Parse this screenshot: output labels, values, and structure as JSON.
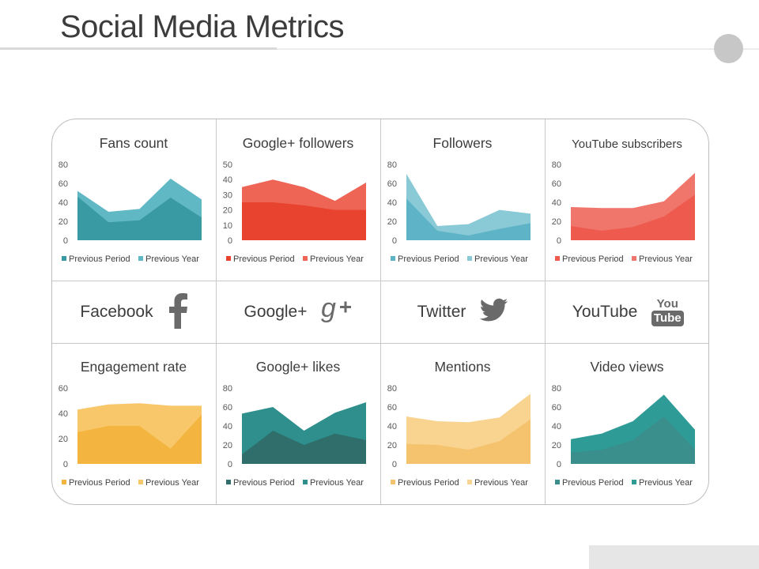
{
  "slide": {
    "title": "Social Media Metrics"
  },
  "networks": [
    {
      "label": "Facebook",
      "icon": "facebook-icon"
    },
    {
      "label": "Google+",
      "icon": "google-plus-icon"
    },
    {
      "label": "Twitter",
      "icon": "twitter-icon"
    },
    {
      "label": "YouTube",
      "icon": "youtube-icon",
      "icon_text_top": "You",
      "icon_text_bottom": "Tube"
    }
  ],
  "chart_data": [
    {
      "type": "area",
      "title": "Fans count",
      "ylim": [
        0,
        80
      ],
      "yticks": [
        0,
        20,
        40,
        60,
        80
      ],
      "x": [
        1,
        2,
        3,
        4,
        5
      ],
      "series": [
        {
          "name": "Previous Period",
          "values": [
            46,
            19,
            21,
            45,
            24
          ],
          "color": "#3a9aa4"
        },
        {
          "name": "Previous Year",
          "values": [
            52,
            30,
            33,
            65,
            43
          ],
          "color": "#5fb8c4"
        }
      ]
    },
    {
      "type": "area",
      "title": "Google+ followers",
      "ylim": [
        0,
        50
      ],
      "yticks": [
        0,
        10,
        20,
        30,
        40,
        50
      ],
      "x": [
        1,
        2,
        3,
        4,
        5
      ],
      "series": [
        {
          "name": "Previous Period",
          "values": [
            25,
            25,
            23,
            20,
            20
          ],
          "color": "#e8432f"
        },
        {
          "name": "Previous Year",
          "values": [
            35,
            40,
            35,
            26,
            38
          ],
          "color": "#ee6555"
        }
      ]
    },
    {
      "type": "area",
      "title": "Followers",
      "ylim": [
        0,
        80
      ],
      "yticks": [
        0,
        20,
        40,
        60,
        80
      ],
      "x": [
        1,
        2,
        3,
        4,
        5
      ],
      "series": [
        {
          "name": "Previous Period",
          "values": [
            44,
            10,
            5,
            12,
            18
          ],
          "color": "#5fb3c6"
        },
        {
          "name": "Previous Year",
          "values": [
            70,
            15,
            17,
            32,
            28
          ],
          "color": "#89cad6"
        }
      ]
    },
    {
      "type": "area",
      "title": "YouTube subscribers",
      "ylim": [
        0,
        80
      ],
      "yticks": [
        0,
        20,
        40,
        60,
        80
      ],
      "x": [
        1,
        2,
        3,
        4,
        5
      ],
      "series": [
        {
          "name": "Previous Period",
          "values": [
            15,
            10,
            14,
            25,
            48
          ],
          "color": "#ee5a4e"
        },
        {
          "name": "Previous Year",
          "values": [
            35,
            34,
            34,
            41,
            71
          ],
          "color": "#f0756a"
        }
      ]
    },
    {
      "type": "area",
      "title": "Engagement rate",
      "ylim": [
        0,
        60
      ],
      "yticks": [
        0,
        20,
        40,
        60
      ],
      "x": [
        1,
        2,
        3,
        4,
        5
      ],
      "series": [
        {
          "name": "Previous Period",
          "values": [
            25,
            30,
            30,
            12,
            39
          ],
          "color": "#f3b440"
        },
        {
          "name": "Previous Year",
          "values": [
            43,
            47,
            48,
            46,
            46
          ],
          "color": "#f7c76a"
        }
      ]
    },
    {
      "type": "area",
      "title": "Google+ likes",
      "ylim": [
        0,
        80
      ],
      "yticks": [
        0,
        20,
        40,
        60,
        80
      ],
      "x": [
        1,
        2,
        3,
        4,
        5
      ],
      "series": [
        {
          "name": "Previous Period",
          "values": [
            10,
            35,
            20,
            32,
            25
          ],
          "color": "#2f6e6a"
        },
        {
          "name": "Previous Year",
          "values": [
            53,
            60,
            35,
            54,
            65
          ],
          "color": "#2e8f8c"
        }
      ]
    },
    {
      "type": "area",
      "title": "Mentions",
      "ylim": [
        0,
        80
      ],
      "yticks": [
        0,
        20,
        40,
        60,
        80
      ],
      "x": [
        1,
        2,
        3,
        4,
        5
      ],
      "series": [
        {
          "name": "Previous Period",
          "values": [
            21,
            20,
            15,
            24,
            47
          ],
          "color": "#f5c36e"
        },
        {
          "name": "Previous Year",
          "values": [
            50,
            45,
            44,
            49,
            74
          ],
          "color": "#f8d490"
        }
      ]
    },
    {
      "type": "area",
      "title": "Video views",
      "ylim": [
        0,
        80
      ],
      "yticks": [
        0,
        20,
        40,
        60,
        80
      ],
      "x": [
        1,
        2,
        3,
        4,
        5
      ],
      "series": [
        {
          "name": "Previous Period",
          "values": [
            12,
            15,
            25,
            50,
            15
          ],
          "color": "#3a8f8c"
        },
        {
          "name": "Previous Year",
          "values": [
            26,
            32,
            45,
            73,
            36
          ],
          "color": "#2e9b97"
        }
      ]
    }
  ]
}
